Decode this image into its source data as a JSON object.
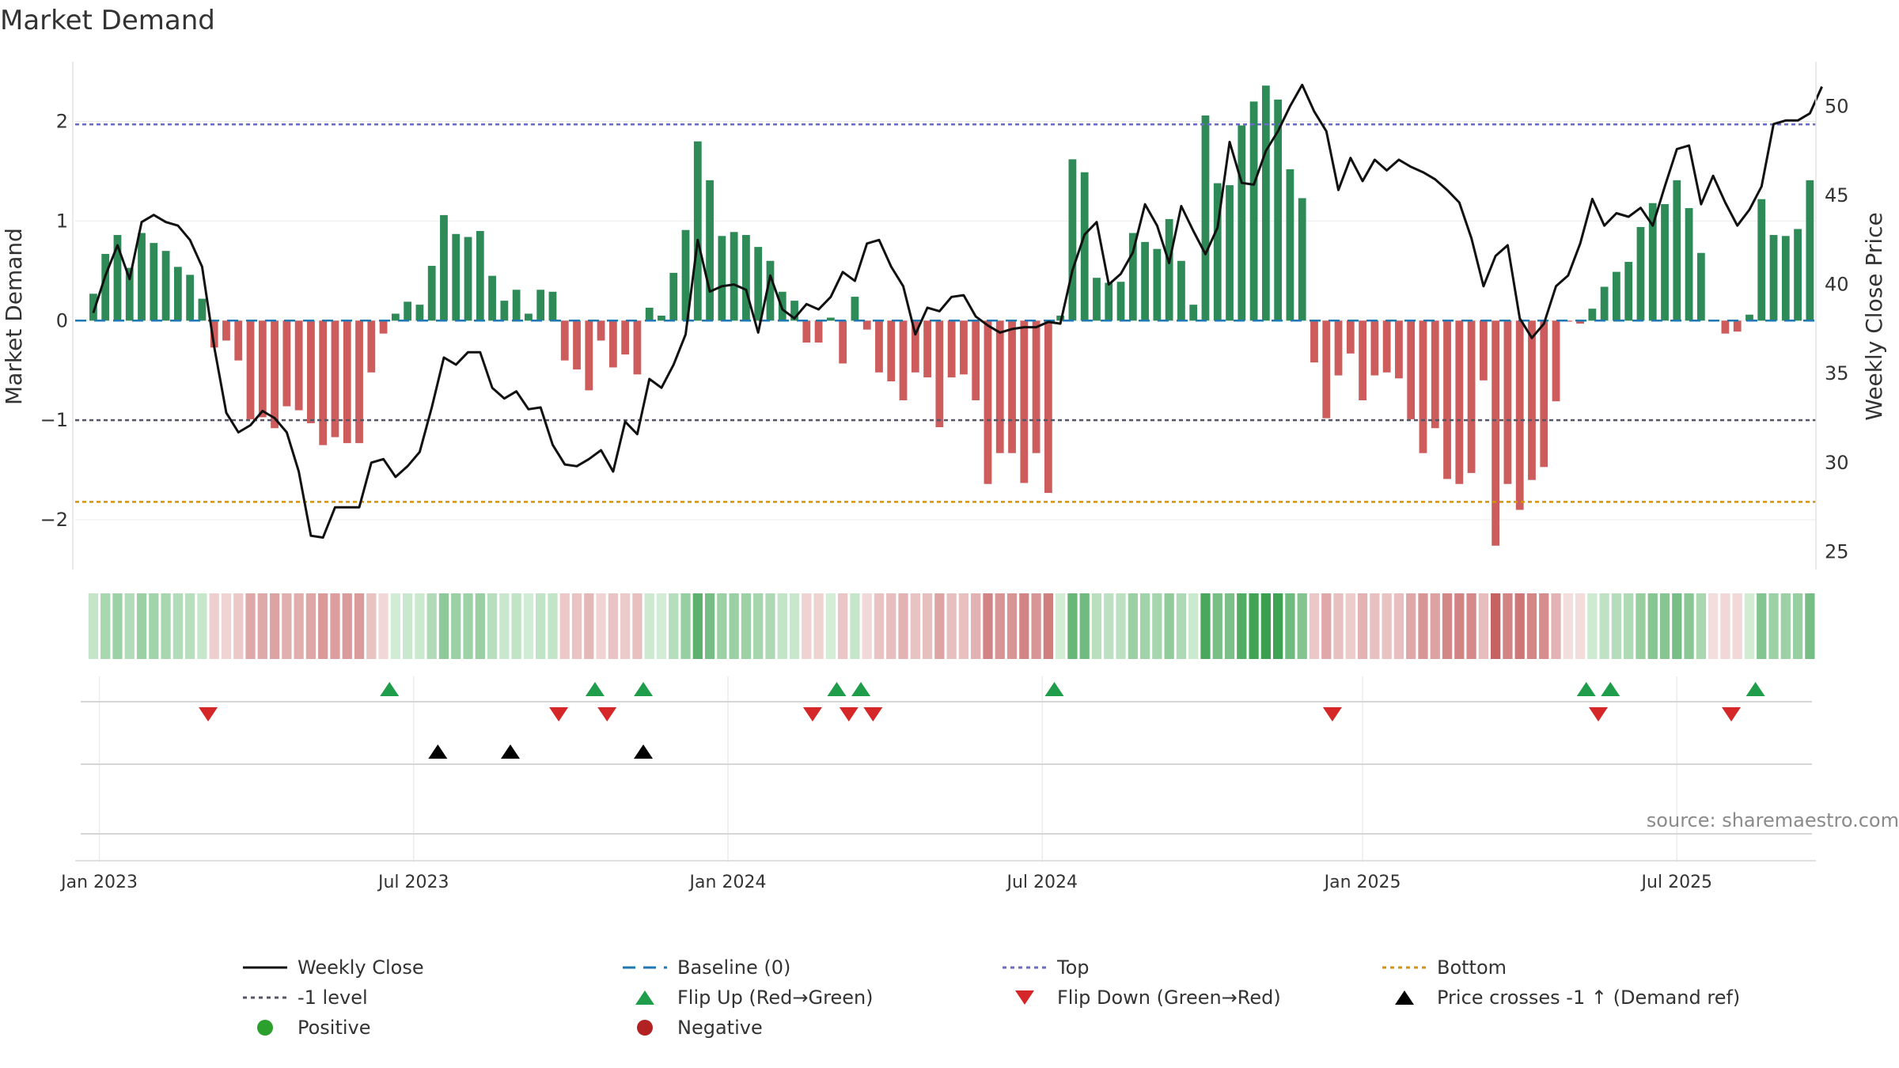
{
  "title": "Market Demand",
  "source": "source: sharemaestro.com",
  "colors": {
    "positive": "#2e8b57",
    "negative": "#cd5c5c",
    "price": "#111111",
    "baseline": "#1f77b4",
    "top": "#6a6ac8",
    "bottom": "#d4940a",
    "minus1": "#555566",
    "flip_up": "#1f9d4a",
    "flip_down": "#d62728",
    "cross": "#000000",
    "legend_positive": "#2ca02c",
    "legend_negative": "#b22222"
  },
  "chart_data": {
    "type": "bar",
    "title": "Market Demand",
    "ylabel": "Market Demand",
    "y2label": "Weekly Close Price",
    "ylim": [
      -2.5,
      2.6
    ],
    "y2lim": [
      24,
      52.5
    ],
    "yticks": [
      2,
      1,
      0,
      -1,
      -2
    ],
    "yticklabels": [
      "2",
      "1",
      "0",
      "−1",
      "−2"
    ],
    "y2ticks": [
      50,
      45,
      40,
      35,
      30,
      25
    ],
    "y2ticklabels": [
      "50",
      "45",
      "40",
      "35",
      "30",
      "25"
    ],
    "xlim": [
      -1.5,
      142.5
    ],
    "xticks": [
      0.5,
      26.5,
      52.5,
      78.5,
      105,
      131
    ],
    "xticklabels": [
      "Jan 2023",
      "Jul 2023",
      "Jan 2024",
      "Jul 2024",
      "Jan 2025",
      "Jul 2025"
    ],
    "levels": {
      "baseline": 0,
      "top": 1.97,
      "minus1": -1,
      "bottom": -1.82
    },
    "demand": [
      0.27,
      0.67,
      0.86,
      0.53,
      0.88,
      0.78,
      0.7,
      0.54,
      0.46,
      0.22,
      -0.27,
      -0.2,
      -0.4,
      -0.99,
      -0.97,
      -1.08,
      -0.86,
      -0.9,
      -1.03,
      -1.25,
      -1.17,
      -1.23,
      -1.23,
      -0.52,
      -0.13,
      0.07,
      0.19,
      0.16,
      0.55,
      1.06,
      0.87,
      0.84,
      0.9,
      0.45,
      0.2,
      0.31,
      0.07,
      0.31,
      0.29,
      -0.4,
      -0.49,
      -0.7,
      -0.2,
      -0.47,
      -0.34,
      -0.54,
      0.13,
      0.05,
      0.48,
      0.91,
      1.8,
      1.41,
      0.85,
      0.89,
      0.86,
      0.74,
      0.6,
      0.29,
      0.2,
      -0.22,
      -0.22,
      0.03,
      -0.43,
      0.24,
      -0.09,
      -0.52,
      -0.61,
      -0.8,
      -0.52,
      -0.57,
      -1.07,
      -0.57,
      -0.54,
      -0.8,
      -1.64,
      -1.33,
      -1.33,
      -1.63,
      -1.33,
      -1.73,
      0.05,
      1.62,
      1.49,
      0.43,
      0.38,
      0.39,
      0.88,
      0.79,
      0.72,
      1.02,
      0.6,
      0.16,
      2.06,
      1.38,
      1.36,
      1.96,
      2.2,
      2.36,
      2.22,
      1.52,
      1.23,
      -0.42,
      -0.98,
      -0.55,
      -0.33,
      -0.8,
      -0.55,
      -0.52,
      -0.58,
      -0.99,
      -1.33,
      -1.08,
      -1.59,
      -1.64,
      -1.53,
      -0.6,
      -2.26,
      -1.64,
      -1.9,
      -1.6,
      -1.47,
      -0.81,
      -0.01,
      -0.03,
      0.12,
      0.34,
      0.49,
      0.59,
      0.94,
      1.18,
      1.17,
      1.41,
      1.13,
      0.68,
      -0.01,
      -0.13,
      -0.11,
      0.06,
      1.22,
      0.86,
      0.85,
      0.92,
      1.41
    ],
    "price": [
      38.4,
      40.5,
      42.2,
      40.3,
      43.5,
      43.9,
      43.5,
      43.3,
      42.5,
      41.0,
      36.5,
      32.8,
      31.7,
      32.1,
      32.9,
      32.5,
      31.7,
      29.5,
      25.9,
      25.8,
      27.5,
      27.5,
      27.5,
      30.0,
      30.2,
      29.2,
      29.8,
      30.6,
      33.1,
      35.9,
      35.5,
      36.2,
      36.2,
      34.2,
      33.6,
      34.0,
      33.0,
      33.1,
      31.0,
      29.9,
      29.8,
      30.2,
      30.7,
      29.5,
      32.3,
      31.6,
      34.7,
      34.2,
      35.5,
      37.2,
      42.5,
      39.6,
      39.9,
      40.0,
      39.7,
      37.3,
      40.5,
      38.6,
      38.1,
      38.9,
      38.6,
      39.3,
      40.7,
      40.2,
      42.3,
      42.5,
      41.0,
      39.9,
      37.2,
      38.7,
      38.5,
      39.3,
      39.4,
      38.2,
      37.7,
      37.3,
      37.5,
      37.6,
      37.6,
      37.9,
      37.8,
      40.8,
      42.8,
      43.5,
      40.0,
      40.6,
      41.8,
      44.5,
      43.3,
      41.2,
      44.4,
      43.0,
      41.7,
      43.2,
      48.0,
      45.7,
      45.6,
      47.5,
      48.6,
      50.0,
      51.2,
      49.7,
      48.6,
      45.3,
      47.1,
      45.8,
      47.0,
      46.4,
      47.0,
      46.6,
      46.3,
      45.9,
      45.3,
      44.6,
      42.6,
      39.9,
      41.6,
      42.2,
      38.1,
      37.0,
      37.8,
      39.9,
      40.5,
      42.3,
      44.8,
      43.3,
      44.0,
      43.8,
      44.3,
      43.3,
      45.5,
      47.6,
      47.8,
      44.5,
      46.1,
      44.6,
      43.3,
      44.2,
      45.5,
      49.0,
      49.2,
      49.2,
      49.6,
      51.1
    ],
    "flip_up": [
      24.5,
      41.5,
      45.5,
      61.5,
      63.5,
      79.5,
      123.5,
      125.5,
      137.5
    ],
    "flip_down": [
      9.5,
      38.5,
      42.5,
      59.5,
      62.5,
      64.5,
      102.5,
      124.5,
      135.5
    ],
    "price_cross_minus1": [
      28.5,
      34.5,
      45.5
    ]
  },
  "legend": [
    {
      "key": "line",
      "label": "Weekly Close"
    },
    {
      "key": "baseline",
      "label": "Baseline (0)"
    },
    {
      "key": "top",
      "label": "Top"
    },
    {
      "key": "bottom",
      "label": "Bottom"
    },
    {
      "key": "minus1",
      "label": "-1 level"
    },
    {
      "key": "flipup",
      "label": "Flip Up (Red→Green)"
    },
    {
      "key": "flipdown",
      "label": "Flip Down (Green→Red)"
    },
    {
      "key": "cross",
      "label": "Price crosses -1 ↑ (Demand ref)"
    },
    {
      "key": "positive",
      "label": "Positive"
    },
    {
      "key": "negative",
      "label": "Negative"
    }
  ]
}
